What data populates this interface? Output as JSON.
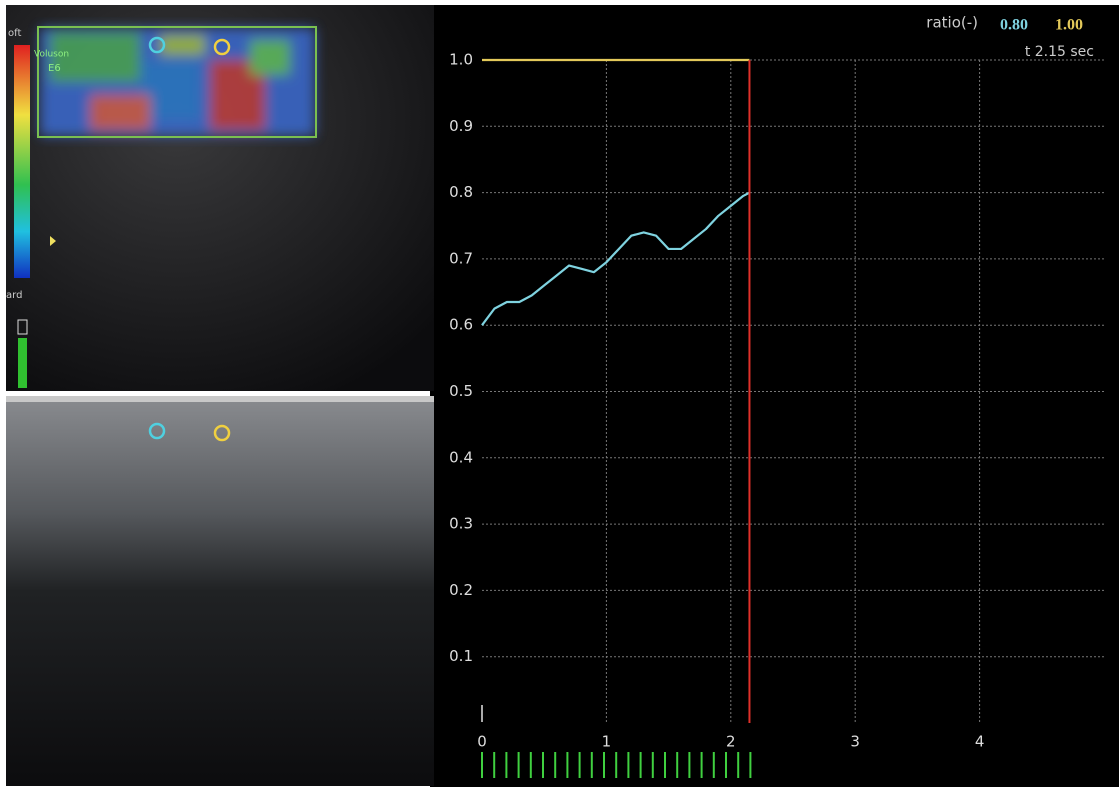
{
  "panel_labels": {
    "soft": "oft",
    "hard": "ard",
    "probe": "Voluson",
    "model": "E6"
  },
  "chart_data": {
    "type": "line",
    "readout": {
      "label": "ratio(-)",
      "values": [
        {
          "value": 0.8,
          "label": "0.80"
        },
        {
          "value": 1,
          "label": "1.00"
        }
      ]
    },
    "time_marker": {
      "value": 2.15,
      "label": "t 2.15 sec",
      "color": "#e0302a"
    },
    "x": [
      0,
      0.1,
      0.2,
      0.3,
      0.4,
      0.5,
      0.6,
      0.7,
      0.8,
      0.9,
      1.0,
      1.1,
      1.2,
      1.3,
      1.4,
      1.5,
      1.6,
      1.7,
      1.8,
      1.9,
      2.0,
      2.1,
      2.15
    ],
    "series": [
      {
        "color": "#7fd3e0",
        "values": [
          0.6,
          0.625,
          0.635,
          0.635,
          0.645,
          0.66,
          0.675,
          0.69,
          0.685,
          0.68,
          0.695,
          0.715,
          0.735,
          0.74,
          0.735,
          0.715,
          0.715,
          0.73,
          0.745,
          0.765,
          0.78,
          0.795,
          0.8
        ]
      },
      {
        "color": "#e3c95a",
        "values": [
          1,
          1,
          1,
          1,
          1,
          1,
          1,
          1,
          1,
          1,
          1,
          1,
          1,
          1,
          1,
          1,
          1,
          1,
          1,
          1,
          1,
          1,
          1
        ]
      }
    ],
    "xlim": [
      0,
      5
    ],
    "ylim": [
      0,
      1
    ],
    "xticks": [
      0,
      1,
      2,
      3,
      4
    ],
    "yticks": [
      0.1,
      0.2,
      0.3,
      0.4,
      0.5,
      0.6,
      0.7,
      0.8,
      0.9,
      {
        "value": 1,
        "label": "1.0"
      }
    ],
    "grid": true
  }
}
